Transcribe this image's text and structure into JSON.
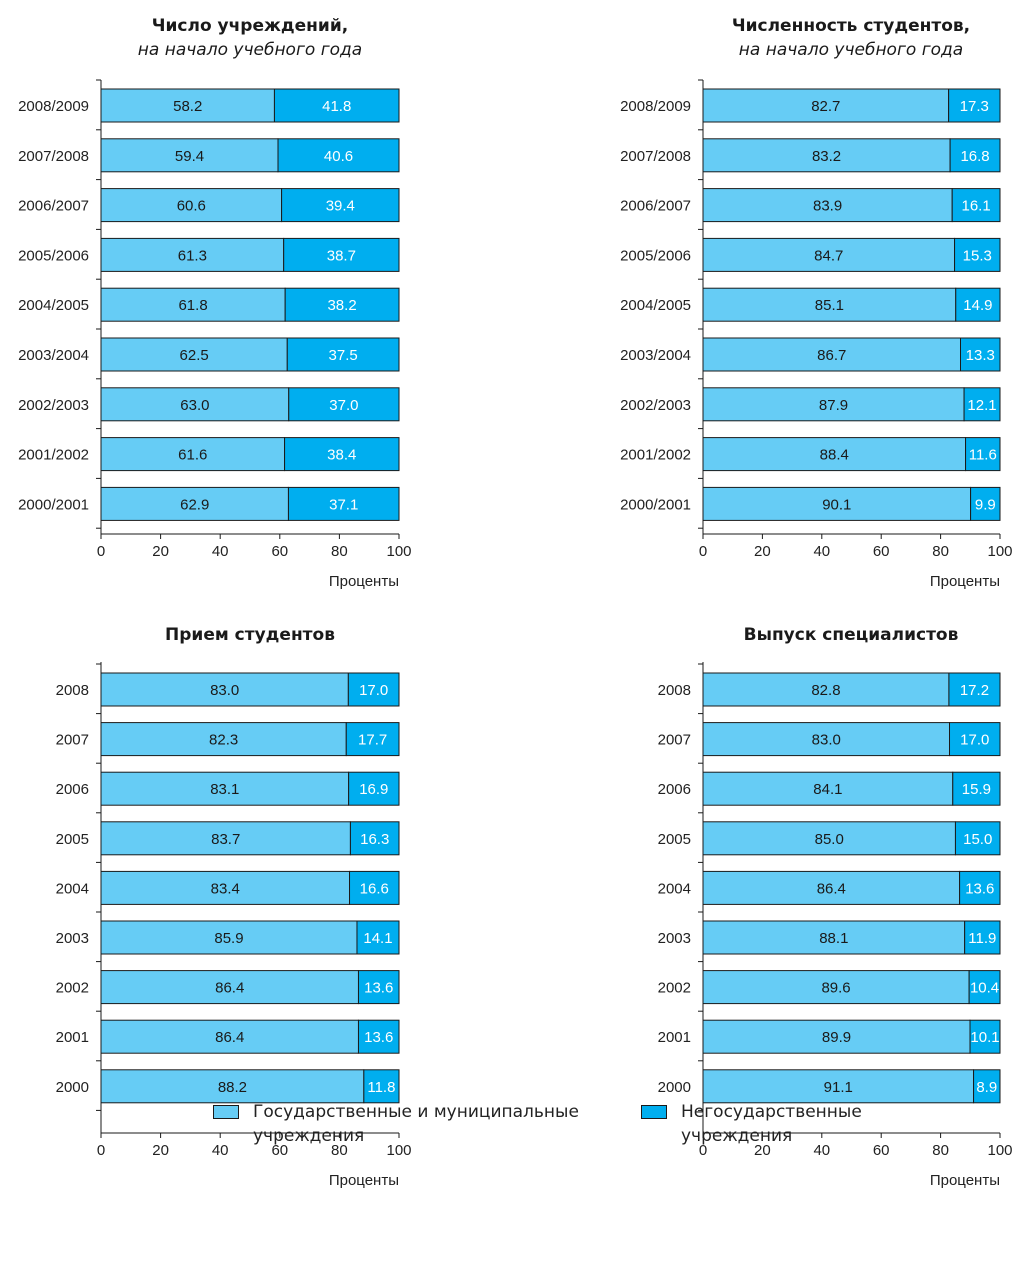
{
  "colors": {
    "state": "#66ccf5",
    "nonstate": "#00aeef",
    "stroke": "#1a1a1a"
  },
  "legend": {
    "state_l1": "Государственные и муниципальные",
    "state_l2": "учреждения",
    "nonstate_l1": "Негосударственные",
    "nonstate_l2": "учреждения"
  },
  "chart_data": [
    {
      "type": "bar",
      "stacked": true,
      "orientation": "horizontal",
      "title": "Число учреждений,",
      "subtitle": "на начало учебного года",
      "xlabel": "Проценты",
      "xlim": [
        0,
        100
      ],
      "xticks": [
        0,
        20,
        40,
        60,
        80,
        100
      ],
      "categories": [
        "2008/2009",
        "2007/2008",
        "2006/2007",
        "2005/2006",
        "2004/2005",
        "2003/2004",
        "2002/2003",
        "2001/2002",
        "2000/2001"
      ],
      "series": [
        {
          "name": "Государственные и муниципальные учреждения",
          "values": [
            58.2,
            59.4,
            60.6,
            61.3,
            61.8,
            62.5,
            63.0,
            61.6,
            62.9
          ],
          "labels": [
            "58.2",
            "59.4",
            "60.6",
            "61.3",
            "61.8",
            "62.5",
            "63.0",
            "61.6",
            "62.9"
          ]
        },
        {
          "name": "Негосударственные учреждения",
          "values": [
            41.8,
            40.6,
            39.4,
            38.7,
            38.2,
            37.5,
            37.0,
            38.4,
            37.1
          ],
          "labels": [
            "41.8",
            "40.6",
            "39.4",
            "38.7",
            "38.2",
            "37.5",
            "37.0",
            "38.4",
            "37.1"
          ]
        }
      ]
    },
    {
      "type": "bar",
      "stacked": true,
      "orientation": "horizontal",
      "title": "Численность студентов,",
      "subtitle": "на начало учебного года",
      "xlabel": "Проценты",
      "xlim": [
        0,
        100
      ],
      "xticks": [
        0,
        20,
        40,
        60,
        80,
        100
      ],
      "categories": [
        "2008/2009",
        "2007/2008",
        "2006/2007",
        "2005/2006",
        "2004/2005",
        "2003/2004",
        "2002/2003",
        "2001/2002",
        "2000/2001"
      ],
      "series": [
        {
          "name": "Государственные и муниципальные учреждения",
          "values": [
            82.7,
            83.2,
            83.9,
            84.7,
            85.1,
            86.7,
            87.9,
            88.4,
            90.1
          ],
          "labels": [
            "82.7",
            "83.2",
            "83.9",
            "84.7",
            "85.1",
            "86.7",
            "87.9",
            "88.4",
            "90.1"
          ]
        },
        {
          "name": "Негосударственные учреждения",
          "values": [
            17.3,
            16.8,
            16.1,
            15.3,
            14.9,
            13.3,
            12.1,
            11.6,
            9.9
          ],
          "labels": [
            "17.3",
            "16.8",
            "16.1",
            "15.3",
            "14.9",
            "13.3",
            "12.1",
            "11.6",
            "9.9"
          ]
        }
      ]
    },
    {
      "type": "bar",
      "stacked": true,
      "orientation": "horizontal",
      "title": "Прием студентов",
      "subtitle": "",
      "xlabel": "Проценты",
      "xlim": [
        0,
        100
      ],
      "xticks": [
        0,
        20,
        40,
        60,
        80,
        100
      ],
      "categories": [
        "2008",
        "2007",
        "2006",
        "2005",
        "2004",
        "2003",
        "2002",
        "2001",
        "2000"
      ],
      "series": [
        {
          "name": "Государственные и муниципальные учреждения",
          "values": [
            83.0,
            82.3,
            83.1,
            83.7,
            83.4,
            85.9,
            86.4,
            86.4,
            88.2
          ],
          "labels": [
            "83.0",
            "82.3",
            "83.1",
            "83.7",
            "83.4",
            "85.9",
            "86.4",
            "86.4",
            "88.2"
          ]
        },
        {
          "name": "Негосударственные учреждения",
          "values": [
            17.0,
            17.7,
            16.9,
            16.3,
            16.6,
            14.1,
            13.6,
            13.6,
            11.8
          ],
          "labels": [
            "17.0",
            "17.7",
            "16.9",
            "16.3",
            "16.6",
            "14.1",
            "13.6",
            "13.6",
            "11.8"
          ]
        }
      ]
    },
    {
      "type": "bar",
      "stacked": true,
      "orientation": "horizontal",
      "title": "Выпуск специалистов",
      "subtitle": "",
      "xlabel": "Проценты",
      "xlim": [
        0,
        100
      ],
      "xticks": [
        0,
        20,
        40,
        60,
        80,
        100
      ],
      "categories": [
        "2008",
        "2007",
        "2006",
        "2005",
        "2004",
        "2003",
        "2002",
        "2001",
        "2000"
      ],
      "series": [
        {
          "name": "Государственные и муниципальные учреждения",
          "values": [
            82.8,
            83.0,
            84.1,
            85.0,
            86.4,
            88.1,
            89.6,
            89.9,
            91.1
          ],
          "labels": [
            "82.8",
            "83.0",
            "84.1",
            "85.0",
            "86.4",
            "88.1",
            "89.6",
            "89.9",
            "91.1"
          ]
        },
        {
          "name": "Негосударственные учреждения",
          "values": [
            17.2,
            17.0,
            15.9,
            15.0,
            13.6,
            11.9,
            10.4,
            10.1,
            8.9
          ],
          "labels": [
            "17.2",
            "17.0",
            "15.9",
            "15.0",
            "13.6",
            "11.9",
            "10.4",
            "10.1",
            "8.9"
          ]
        }
      ]
    }
  ]
}
